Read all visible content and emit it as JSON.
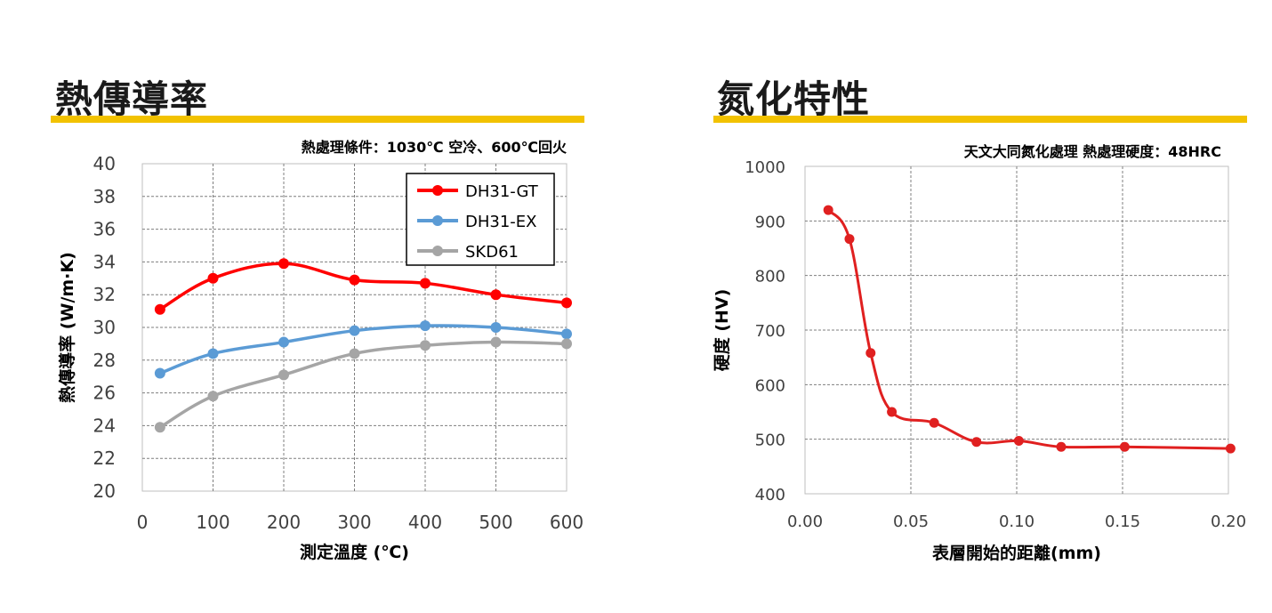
{
  "headings": {
    "left": "熱傳導率",
    "right": "氮化特性"
  },
  "colors": {
    "underline": "#f2c200",
    "grid": "#7f7f7f",
    "axis": "#bfbfbf",
    "tick_text": "#404040",
    "label_text": "#000000"
  },
  "chart_data": [
    {
      "type": "line",
      "subtitle": "熱處理條件：1030℃ 空冷、600℃回火",
      "xlabel": "測定溫度 (℃)",
      "ylabel": "熱傳導率 (W/m·K)",
      "xlim": [
        0,
        600
      ],
      "ylim": [
        20,
        40
      ],
      "xticks": [
        0,
        100,
        200,
        300,
        400,
        500,
        600
      ],
      "yticks": [
        20,
        22,
        24,
        26,
        28,
        30,
        32,
        34,
        36,
        38,
        40
      ],
      "grid": true,
      "legend_position": "top-right",
      "series": [
        {
          "name": "DH31-GT",
          "color": "#ff0000",
          "x": [
            25,
            100,
            200,
            300,
            400,
            500,
            600
          ],
          "y": [
            31.1,
            33.0,
            33.9,
            32.9,
            32.7,
            32.0,
            31.5
          ]
        },
        {
          "name": "DH31-EX",
          "color": "#5b9bd5",
          "x": [
            25,
            100,
            200,
            300,
            400,
            500,
            600
          ],
          "y": [
            27.2,
            28.4,
            29.1,
            29.8,
            30.1,
            30.0,
            29.6
          ]
        },
        {
          "name": "SKD61",
          "color": "#a5a5a5",
          "x": [
            25,
            100,
            200,
            300,
            400,
            500,
            600
          ],
          "y": [
            23.9,
            25.8,
            27.1,
            28.4,
            28.9,
            29.1,
            29.0
          ]
        }
      ]
    },
    {
      "type": "line",
      "subtitle": "天文大同氮化處理  熱處理硬度：48HRC",
      "xlabel": "表層開始的距離(mm)",
      "ylabel": "硬度 (HV)",
      "xlim": [
        0,
        0.2
      ],
      "ylim": [
        400,
        1000
      ],
      "xticks": [
        "0.00",
        "0.05",
        "0.10",
        "0.15",
        "0.20"
      ],
      "yticks": [
        400,
        500,
        600,
        700,
        800,
        900,
        1000
      ],
      "grid": true,
      "series": [
        {
          "color": "#e02020",
          "x": [
            0.011,
            0.021,
            0.031,
            0.041,
            0.061,
            0.081,
            0.101,
            0.121,
            0.151,
            0.201
          ],
          "y": [
            920,
            867,
            658,
            550,
            530,
            495,
            497,
            486,
            486,
            483
          ]
        }
      ]
    }
  ]
}
